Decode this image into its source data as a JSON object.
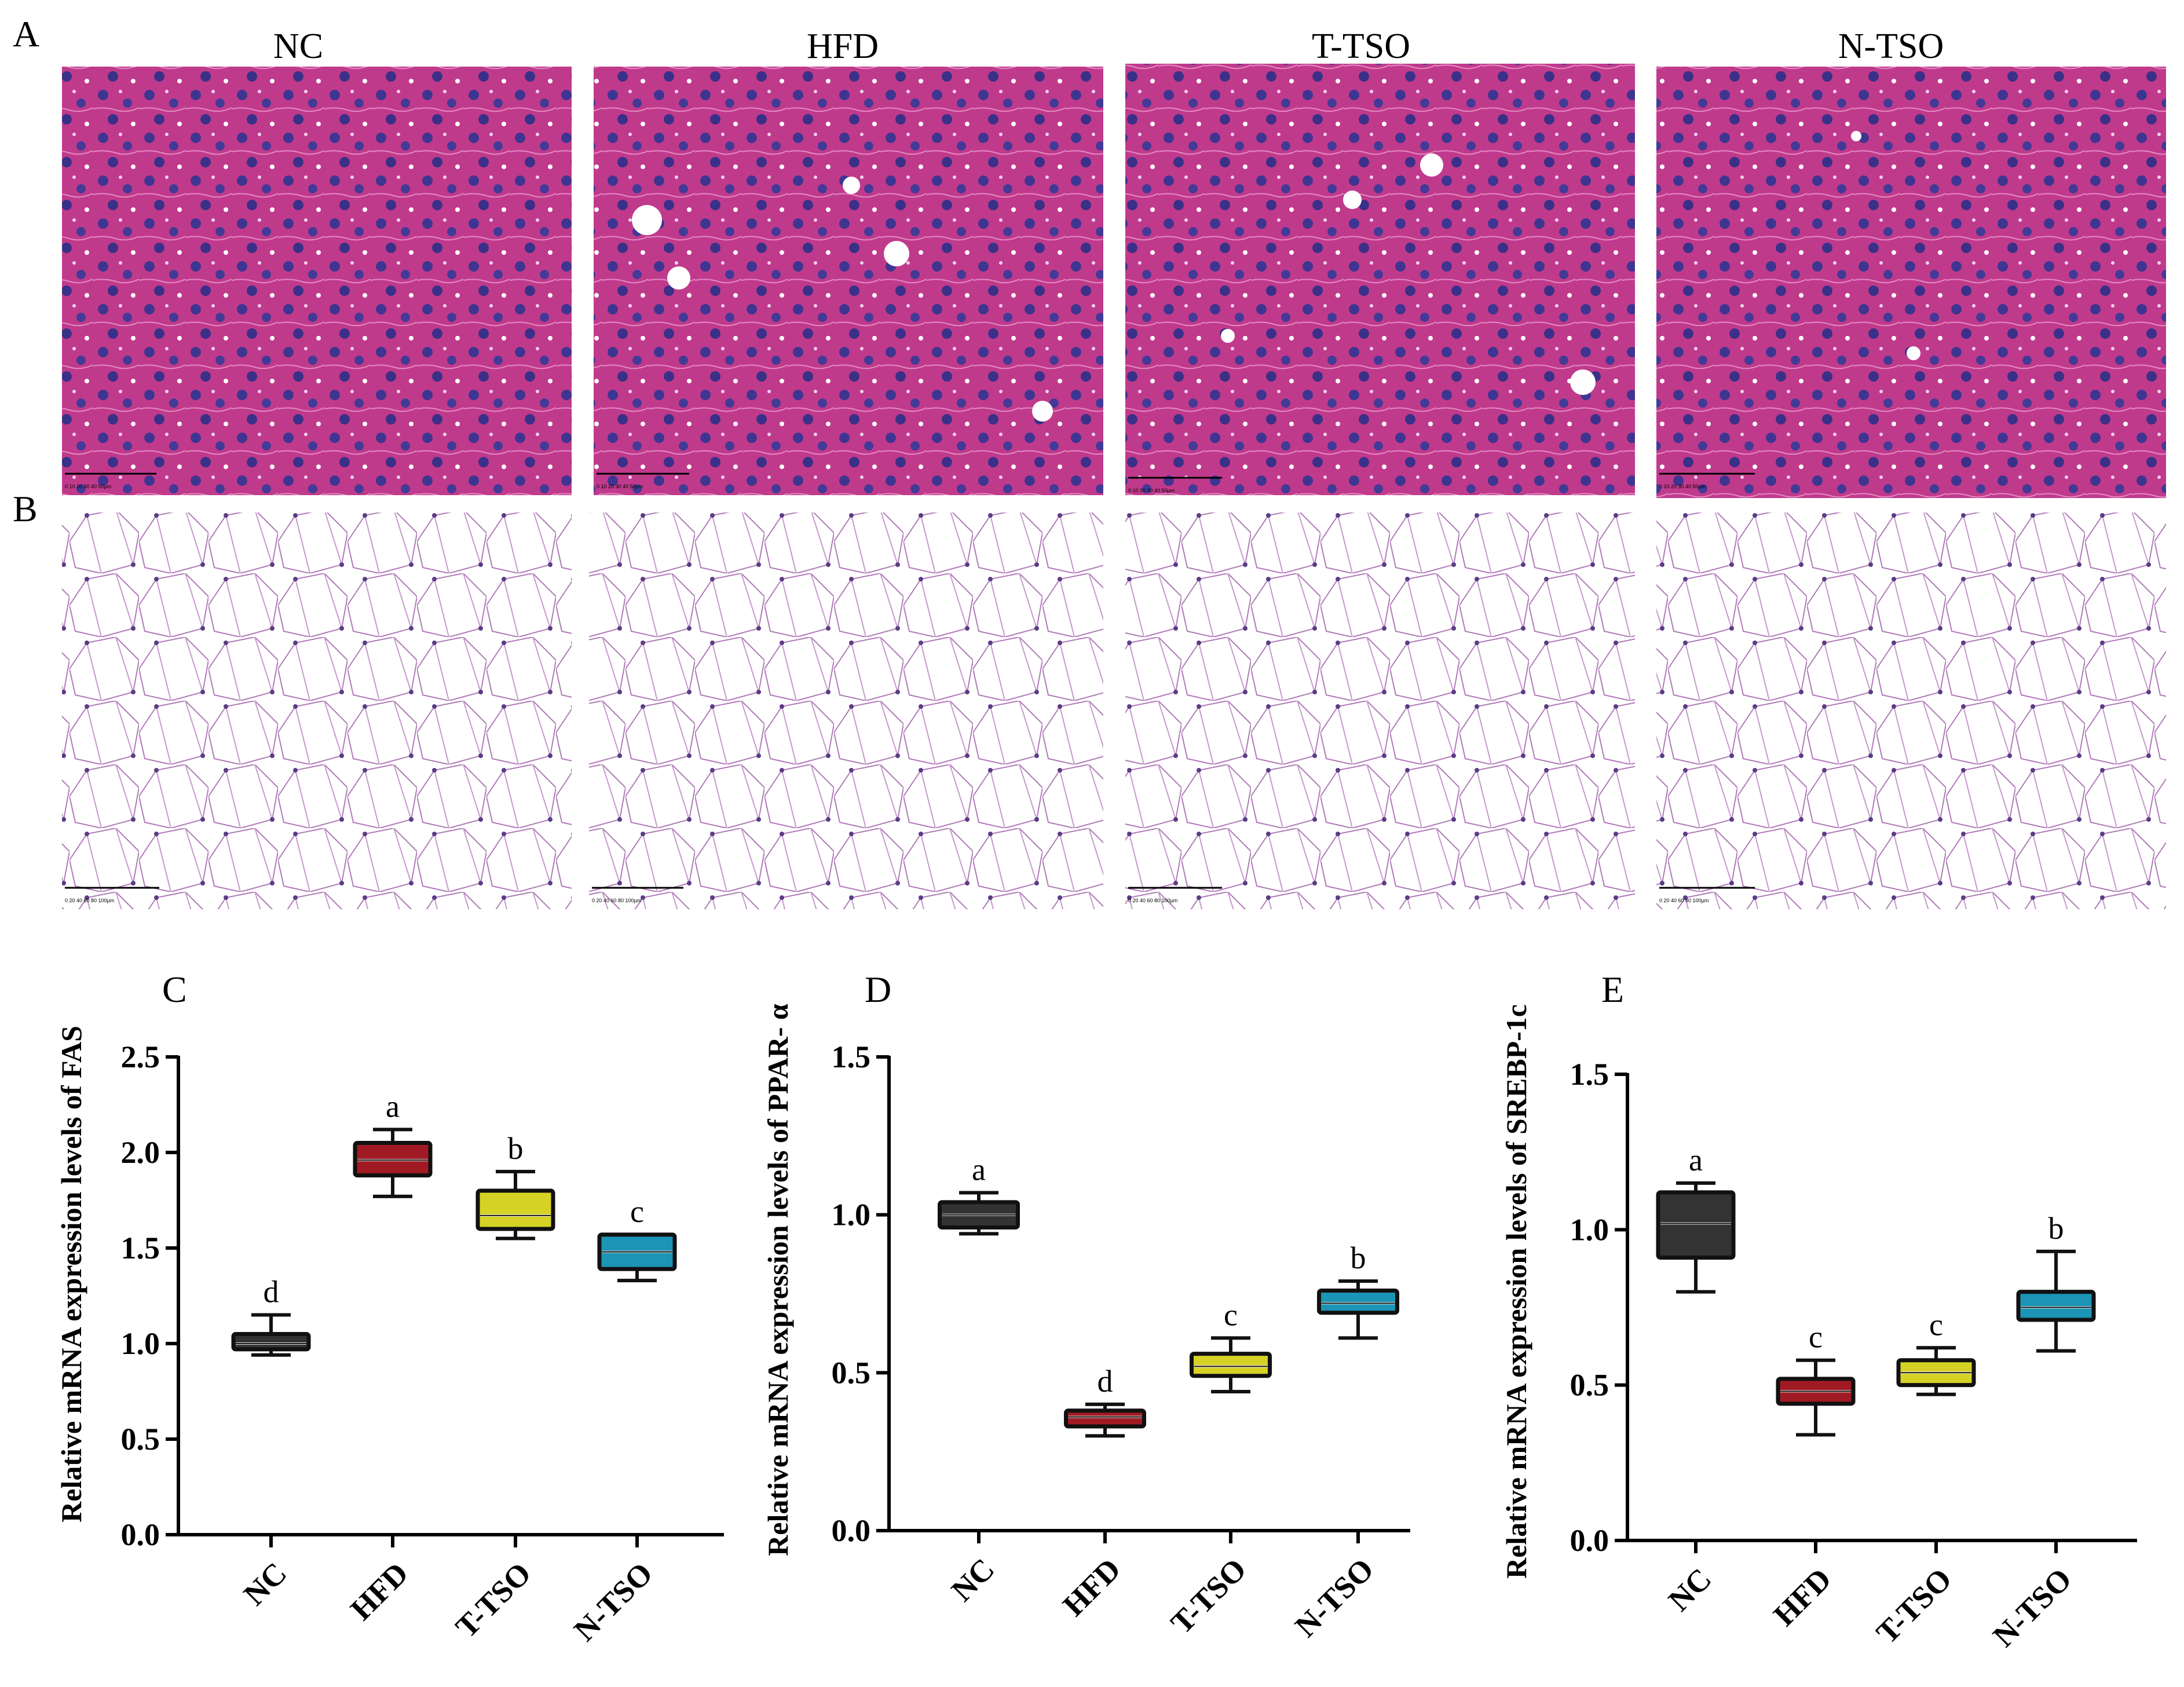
{
  "panels": {
    "A": "A",
    "B": "B",
    "group_labels": [
      "NC",
      "HFD",
      "T-TSO",
      "N-TSO"
    ],
    "liver_scale_text": "0  10  20  30  40  50µm",
    "adipose_scale_text": "0  20  40  60  80  100µm"
  },
  "colors": {
    "NC": "#333333",
    "HFD": "#a01a23",
    "T-TSO": "#d6d225",
    "N-TSO": "#1b94b5",
    "he_pink": "#c23d8f",
    "nucleus": "#3b2f8a"
  },
  "chart_data": [
    {
      "panel": "C",
      "type": "box",
      "title": "",
      "xlabel": "",
      "ylabel": "Relative mRNA expression levels of FAS",
      "categories": [
        "NC",
        "HFD",
        "T-TSO",
        "N-TSO"
      ],
      "ylim": [
        0,
        2.5
      ],
      "yticks": [
        "0.0",
        "0.5",
        "1.0",
        "1.5",
        "2.0",
        "2.5"
      ],
      "boxes": [
        {
          "min": 0.94,
          "q1": 0.97,
          "median": 1.0,
          "q3": 1.05,
          "max": 1.15,
          "sig": "d"
        },
        {
          "min": 1.77,
          "q1": 1.88,
          "median": 1.96,
          "q3": 2.05,
          "max": 2.12,
          "sig": "a"
        },
        {
          "min": 1.55,
          "q1": 1.6,
          "median": 1.67,
          "q3": 1.8,
          "max": 1.9,
          "sig": "b"
        },
        {
          "min": 1.33,
          "q1": 1.39,
          "median": 1.48,
          "q3": 1.57,
          "max": 1.57,
          "sig": "c"
        }
      ]
    },
    {
      "panel": "D",
      "type": "box",
      "title": "",
      "xlabel": "",
      "ylabel": "Relative mRNA expression levels of PPAR- α",
      "categories": [
        "NC",
        "HFD",
        "T-TSO",
        "N-TSO"
      ],
      "ylim": [
        0,
        1.5
      ],
      "yticks": [
        "0.0",
        "0.5",
        "1.0",
        "1.5"
      ],
      "boxes": [
        {
          "min": 0.94,
          "q1": 0.96,
          "median": 1.0,
          "q3": 1.04,
          "max": 1.07,
          "sig": "a"
        },
        {
          "min": 0.3,
          "q1": 0.33,
          "median": 0.36,
          "q3": 0.38,
          "max": 0.4,
          "sig": "d"
        },
        {
          "min": 0.44,
          "q1": 0.49,
          "median": 0.52,
          "q3": 0.56,
          "max": 0.61,
          "sig": "c"
        },
        {
          "min": 0.61,
          "q1": 0.69,
          "median": 0.72,
          "q3": 0.76,
          "max": 0.79,
          "sig": "b"
        }
      ]
    },
    {
      "panel": "E",
      "type": "box",
      "title": "",
      "xlabel": "",
      "ylabel": "Relative mRNA expression levels of SREBP-1c",
      "categories": [
        "NC",
        "HFD",
        "T-TSO",
        "N-TSO"
      ],
      "ylim": [
        0,
        1.5
      ],
      "yticks": [
        "0.0",
        "0.5",
        "1.0",
        "1.5"
      ],
      "boxes": [
        {
          "min": 0.8,
          "q1": 0.91,
          "median": 1.02,
          "q3": 1.12,
          "max": 1.15,
          "sig": "a"
        },
        {
          "min": 0.34,
          "q1": 0.44,
          "median": 0.48,
          "q3": 0.52,
          "max": 0.58,
          "sig": "c"
        },
        {
          "min": 0.47,
          "q1": 0.5,
          "median": 0.54,
          "q3": 0.58,
          "max": 0.62,
          "sig": "c"
        },
        {
          "min": 0.61,
          "q1": 0.71,
          "median": 0.75,
          "q3": 0.8,
          "max": 0.93,
          "sig": "b"
        }
      ]
    }
  ]
}
